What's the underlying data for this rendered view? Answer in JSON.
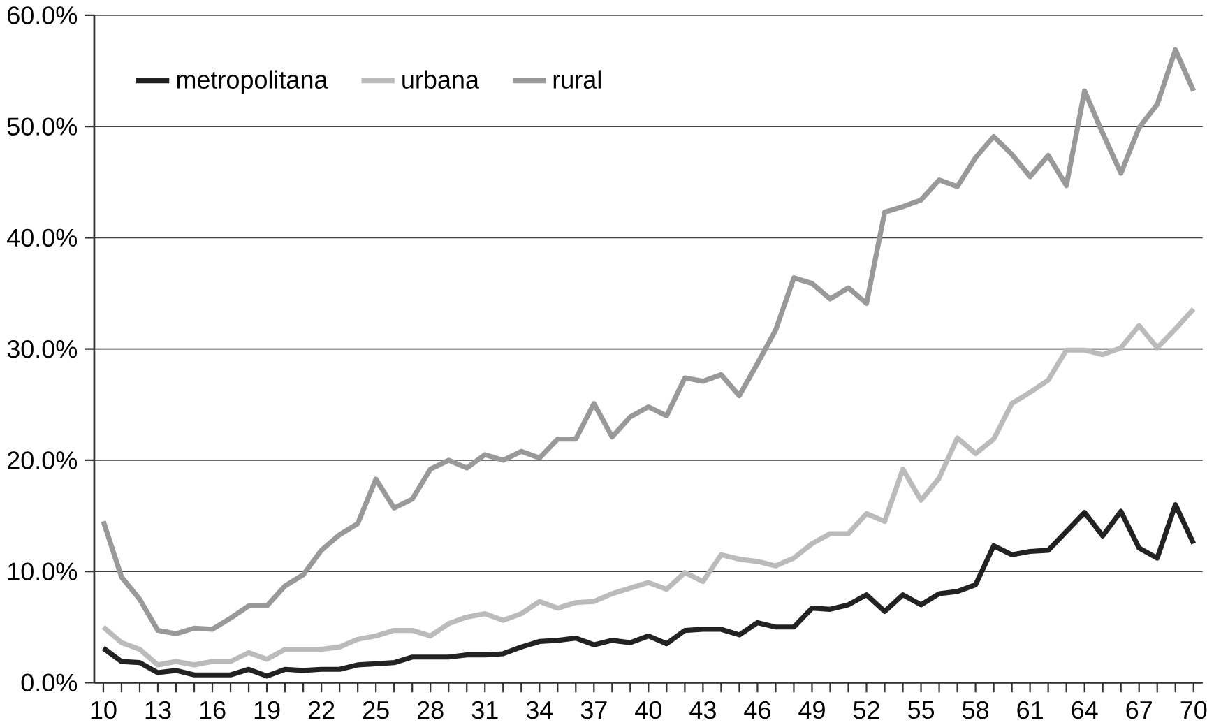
{
  "chart_data": {
    "type": "line",
    "categories": [
      "10",
      null,
      null,
      "13",
      null,
      null,
      "16",
      null,
      null,
      "19",
      null,
      null,
      "22",
      null,
      null,
      "25",
      null,
      null,
      "28",
      null,
      null,
      "31",
      null,
      null,
      "34",
      null,
      null,
      "37",
      null,
      null,
      "40",
      null,
      null,
      "43",
      null,
      null,
      "46",
      null,
      null,
      "49",
      null,
      null,
      "52",
      null,
      null,
      "55",
      null,
      null,
      "58",
      null,
      null,
      "61",
      null,
      null,
      "64",
      null,
      null,
      "67",
      null,
      null,
      "70"
    ],
    "series": [
      {
        "name": "metropolitana",
        "color": "#222222",
        "values": [
          3.1,
          1.9,
          1.8,
          0.9,
          1.1,
          0.7,
          0.7,
          0.7,
          1.2,
          0.6,
          1.2,
          1.1,
          1.2,
          1.2,
          1.6,
          1.7,
          1.8,
          2.3,
          2.3,
          2.3,
          2.5,
          2.5,
          2.6,
          3.2,
          3.7,
          3.8,
          4.0,
          3.4,
          3.8,
          3.6,
          4.2,
          3.5,
          4.7,
          4.8,
          4.8,
          4.3,
          5.4,
          5.0,
          5.0,
          6.7,
          6.6,
          7.0,
          7.9,
          6.4,
          7.9,
          7.0,
          8.0,
          8.2,
          8.8,
          12.3,
          11.5,
          11.8,
          11.9,
          13.6,
          15.3,
          13.2,
          15.4,
          12.1,
          11.2,
          16.0,
          12.5
        ]
      },
      {
        "name": "urbana",
        "color": "#bbbbbb",
        "values": [
          5.0,
          3.6,
          3.0,
          1.6,
          1.9,
          1.6,
          1.9,
          1.9,
          2.7,
          2.1,
          3.0,
          3.0,
          3.0,
          3.2,
          3.9,
          4.2,
          4.7,
          4.7,
          4.2,
          5.3,
          5.9,
          6.2,
          5.6,
          6.2,
          7.3,
          6.7,
          7.2,
          7.3,
          8.0,
          8.5,
          9.0,
          8.4,
          9.9,
          9.1,
          11.5,
          11.1,
          10.9,
          10.5,
          11.2,
          12.5,
          13.4,
          13.4,
          15.2,
          14.5,
          19.2,
          16.4,
          18.4,
          22.0,
          20.6,
          21.9,
          25.1,
          26.1,
          27.2,
          29.9,
          29.9,
          29.5,
          30.1,
          32.1,
          30.1,
          31.8,
          33.6
        ]
      },
      {
        "name": "rural",
        "color": "#999999",
        "values": [
          14.5,
          9.5,
          7.5,
          4.7,
          4.4,
          4.9,
          4.8,
          5.8,
          6.9,
          6.9,
          8.7,
          9.7,
          11.9,
          13.3,
          14.3,
          18.3,
          15.7,
          16.5,
          19.2,
          20.0,
          19.3,
          20.5,
          20.0,
          20.8,
          20.2,
          21.9,
          21.9,
          25.1,
          22.1,
          23.9,
          24.8,
          24.0,
          27.4,
          27.1,
          27.7,
          25.8,
          28.7,
          31.7,
          36.4,
          35.9,
          34.5,
          35.5,
          34.1,
          42.3,
          42.8,
          43.4,
          45.2,
          44.6,
          47.2,
          49.1,
          47.5,
          45.5,
          47.4,
          44.7,
          53.2,
          49.4,
          45.8,
          49.9,
          52.0,
          56.9,
          53.2
        ]
      }
    ],
    "ylim": [
      0,
      60
    ],
    "yticks": [
      {
        "value": 0,
        "label": "0.0%"
      },
      {
        "value": 10,
        "label": "10.0%"
      },
      {
        "value": 20,
        "label": "20.0%"
      },
      {
        "value": 30,
        "label": "30.0%"
      },
      {
        "value": 40,
        "label": "40.0%"
      },
      {
        "value": 50,
        "label": "50.0%"
      },
      {
        "value": 60,
        "label": "60.0%"
      }
    ],
    "grid": "y",
    "legend": "top left",
    "marker": "none",
    "line_style": "solid"
  }
}
